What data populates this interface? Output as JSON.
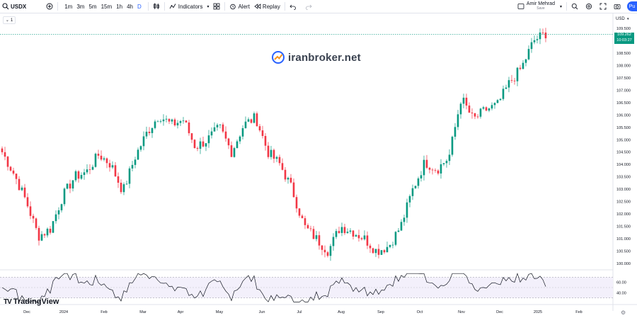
{
  "toolbar": {
    "symbol": "USDX",
    "timeframes": [
      "1m",
      "3m",
      "5m",
      "15m",
      "1h",
      "4h",
      "D"
    ],
    "active_timeframe": "D",
    "indicators_label": "Indicators",
    "alert_label": "Alert",
    "replay_label": "Replay",
    "user_name": "Amir Mehrad",
    "user_status": "Save",
    "publish_label": "Pu"
  },
  "collapse_label": "1",
  "watermark": "iranbroker.net",
  "brand": "TradingView",
  "currency": "USD",
  "last_price": "109.262",
  "countdown": "10:03:27",
  "colors": {
    "up": "#089981",
    "down": "#f23645",
    "accent": "#2962ff"
  },
  "chart_data": {
    "type": "candlestick",
    "y_ticks": [
      "109.500",
      "109.000",
      "108.500",
      "108.000",
      "107.500",
      "107.000",
      "106.500",
      "106.000",
      "105.500",
      "105.000",
      "104.500",
      "104.000",
      "103.500",
      "103.000",
      "102.500",
      "102.000",
      "101.500",
      "101.000",
      "100.500",
      "100.000"
    ],
    "x_ticks": [
      "Dec",
      "2024",
      "Feb",
      "Mar",
      "Apr",
      "May",
      "Jun",
      "Jul",
      "Aug",
      "Sep",
      "Oct",
      "Nov",
      "Dec",
      "2025",
      "Feb"
    ],
    "ylim": [
      99.8,
      109.9
    ],
    "close_path": [
      104.5,
      103.6,
      102.5,
      101.1,
      101.4,
      102.7,
      103.5,
      103.7,
      104.4,
      104.0,
      102.9,
      104.3,
      105.3,
      106.0,
      105.6,
      105.8,
      104.7,
      105.0,
      105.5,
      104.5,
      105.6,
      105.9,
      104.5,
      104.0,
      103.0,
      101.5,
      101.0,
      100.5,
      101.5,
      101.3,
      101.0,
      100.5,
      100.7,
      101.5,
      103.0,
      104.1,
      103.8,
      104.3,
      106.7,
      105.8,
      106.2,
      106.4,
      107.3,
      107.9,
      109.0,
      109.3
    ],
    "rsi": {
      "levels": [
        "60.00",
        "40.00"
      ],
      "upper": 70,
      "lower": 30,
      "ylim": [
        20,
        80
      ]
    }
  }
}
